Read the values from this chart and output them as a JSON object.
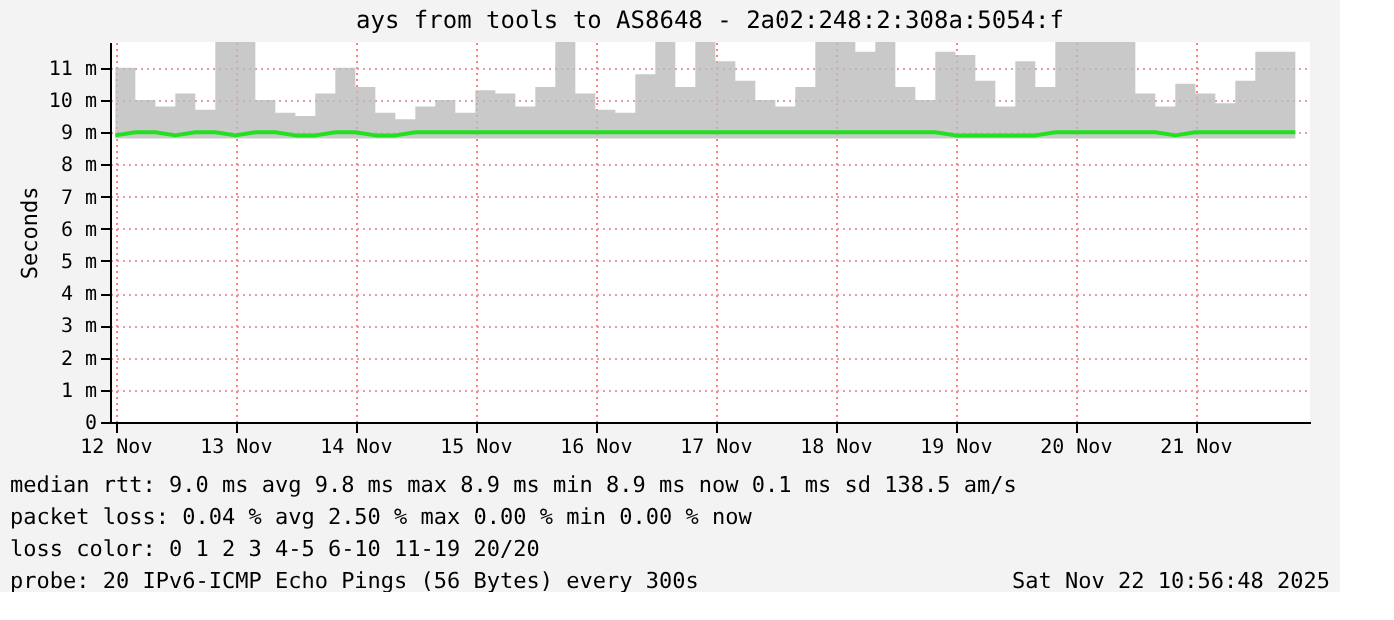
{
  "chart_data": {
    "type": "line",
    "title": "ays from tools to AS8648 - 2a02:248:2:308a:5054:f",
    "ylabel": "Seconds",
    "x": [
      "2025-11-12T12:00",
      "2025-11-12T16:00",
      "2025-11-12T20:00",
      "2025-11-13T00:00",
      "2025-11-13T04:00",
      "2025-11-13T08:00",
      "2025-11-13T12:00",
      "2025-11-13T16:00",
      "2025-11-13T20:00",
      "2025-11-14T00:00",
      "2025-11-14T04:00",
      "2025-11-14T08:00",
      "2025-11-14T12:00",
      "2025-11-14T16:00",
      "2025-11-14T20:00",
      "2025-11-15T00:00",
      "2025-11-15T04:00",
      "2025-11-15T08:00",
      "2025-11-15T12:00",
      "2025-11-15T16:00",
      "2025-11-15T20:00",
      "2025-11-16T00:00",
      "2025-11-16T04:00",
      "2025-11-16T08:00",
      "2025-11-16T12:00",
      "2025-11-16T16:00",
      "2025-11-16T20:00",
      "2025-11-17T00:00",
      "2025-11-17T04:00",
      "2025-11-17T08:00",
      "2025-11-17T12:00",
      "2025-11-17T16:00",
      "2025-11-17T20:00",
      "2025-11-18T00:00",
      "2025-11-18T04:00",
      "2025-11-18T08:00",
      "2025-11-18T12:00",
      "2025-11-18T16:00",
      "2025-11-18T20:00",
      "2025-11-19T00:00",
      "2025-11-19T04:00",
      "2025-11-19T08:00",
      "2025-11-19T12:00",
      "2025-11-19T16:00",
      "2025-11-19T20:00",
      "2025-11-20T00:00",
      "2025-11-20T04:00",
      "2025-11-20T08:00",
      "2025-11-20T12:00",
      "2025-11-20T16:00",
      "2025-11-20T20:00",
      "2025-11-21T00:00",
      "2025-11-21T04:00",
      "2025-11-21T08:00",
      "2025-11-21T12:00",
      "2025-11-21T16:00",
      "2025-11-21T20:00",
      "2025-11-22T00:00",
      "2025-11-22T04:00",
      "2025-11-22T08:00"
    ],
    "series": [
      {
        "color": "#20e020",
        "values": [
          8.9,
          9.0,
          9.0,
          8.9,
          9.0,
          9.0,
          8.9,
          9.0,
          9.0,
          8.9,
          8.9,
          9.0,
          9.0,
          8.9,
          8.9,
          9.0,
          9.0,
          9.0,
          9.0,
          9.0,
          9.0,
          9.0,
          9.0,
          9.0,
          9.0,
          9.0,
          9.0,
          9.0,
          9.0,
          9.0,
          9.0,
          9.0,
          9.0,
          9.0,
          9.0,
          9.0,
          9.0,
          9.0,
          9.0,
          9.0,
          9.0,
          9.0,
          8.9,
          8.9,
          8.9,
          8.9,
          8.9,
          9.0,
          9.0,
          9.0,
          9.0,
          9.0,
          9.0,
          8.9,
          9.0,
          9.0,
          9.0,
          9.0,
          9.0,
          9.0
        ],
        "lower": [
          8.8,
          8.8,
          8.8,
          8.8,
          8.8,
          8.8,
          8.8,
          8.8,
          8.8,
          8.8,
          8.8,
          8.8,
          8.8,
          8.8,
          8.8,
          8.8,
          8.8,
          8.8,
          8.8,
          8.8,
          8.8,
          8.8,
          8.8,
          8.8,
          8.8,
          8.8,
          8.8,
          8.8,
          8.8,
          8.8,
          8.8,
          8.8,
          8.8,
          8.8,
          8.8,
          8.8,
          8.8,
          8.8,
          8.8,
          8.8,
          8.8,
          8.8,
          8.8,
          8.8,
          8.8,
          8.8,
          8.8,
          8.8,
          8.8,
          8.8,
          8.8,
          8.8,
          8.8,
          8.8,
          8.8,
          8.8,
          8.8,
          8.8,
          8.8,
          8.8
        ],
        "upper": [
          11.0,
          10.0,
          9.8,
          10.2,
          9.7,
          11.8,
          11.8,
          10.0,
          9.6,
          9.5,
          10.2,
          11.0,
          10.4,
          9.6,
          9.4,
          9.8,
          10.0,
          9.6,
          10.3,
          10.2,
          9.8,
          10.4,
          11.8,
          10.2,
          9.7,
          9.6,
          10.8,
          11.8,
          10.4,
          11.8,
          11.2,
          10.6,
          10.0,
          9.8,
          10.4,
          11.8,
          11.8,
          11.5,
          11.8,
          10.4,
          10.0,
          11.5,
          11.4,
          10.6,
          9.8,
          11.2,
          10.4,
          11.8,
          11.8,
          11.8,
          11.8,
          10.2,
          9.8,
          10.5,
          10.2,
          9.9,
          10.6,
          11.5,
          11.5,
          9.8
        ]
      }
    ],
    "xlim": [
      "2025-11-12T10:56",
      "2025-11-22T10:56"
    ],
    "xticks": [
      {
        "value": "2025-11-12T12:00",
        "label": "12 Nov"
      },
      {
        "value": "2025-11-13T12:00",
        "label": "13 Nov"
      },
      {
        "value": "2025-11-14T12:00",
        "label": "14 Nov"
      },
      {
        "value": "2025-11-15T12:00",
        "label": "15 Nov"
      },
      {
        "value": "2025-11-16T12:00",
        "label": "16 Nov"
      },
      {
        "value": "2025-11-17T12:00",
        "label": "17 Nov"
      },
      {
        "value": "2025-11-18T12:00",
        "label": "18 Nov"
      },
      {
        "value": "2025-11-19T12:00",
        "label": "19 Nov"
      },
      {
        "value": "2025-11-20T12:00",
        "label": "20 Nov"
      },
      {
        "value": "2025-11-21T12:00",
        "label": "21 Nov"
      }
    ],
    "ylim": [
      0,
      11.8
    ],
    "yticks": [
      0,
      {
        "value": 1,
        "label": "1 m"
      },
      {
        "value": 2,
        "label": "2 m"
      },
      {
        "value": 3,
        "label": "3 m"
      },
      {
        "value": 4,
        "label": "4 m"
      },
      {
        "value": 5,
        "label": "5 m"
      },
      {
        "value": 6,
        "label": "6 m"
      },
      {
        "value": 7,
        "label": "7 m"
      },
      {
        "value": 8,
        "label": "8 m"
      },
      {
        "value": 9,
        "label": "9 m"
      },
      {
        "value": 10,
        "label": "10 m"
      },
      {
        "value": 11,
        "label": "11 m"
      }
    ],
    "grid": true,
    "annotations": [
      "median rtt:  9.0 ms avg  9.8 ms max  8.9 ms min  8.9 ms now  0.1 ms sd  138.5   am/s",
      "packet loss: 0.04 % avg  2.50 % max  0.00 % min  0.00 % now",
      "loss color:  0  1  2  3  4-5  6-10  11-19  20/20",
      "probe:       20 IPv6-ICMP Echo Pings (56 Bytes) every 300s",
      "Sat Nov 22 10:56:48 2025"
    ]
  }
}
